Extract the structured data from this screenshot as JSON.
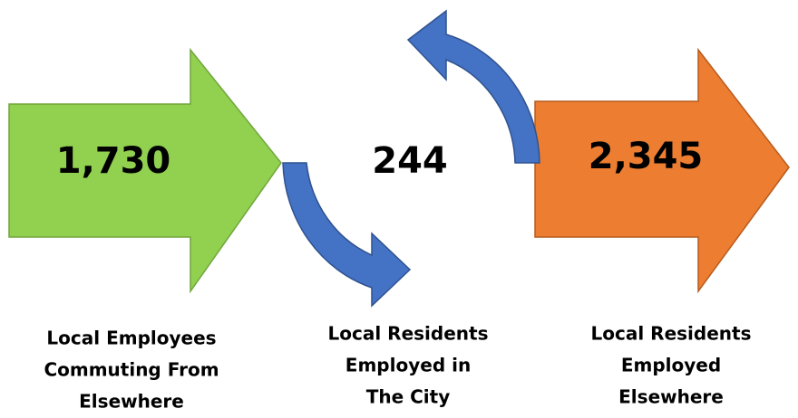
{
  "nodes": [
    {
      "value": "1,730",
      "label": [
        "Local Employees",
        "Commuting From",
        "Elsewhere"
      ]
    },
    {
      "value": "244",
      "label": [
        "Local Residents",
        "Employed in",
        "The City"
      ]
    },
    {
      "value": "2,345",
      "label": [
        "Local Residents",
        "Employed",
        "Elsewhere"
      ]
    }
  ]
}
